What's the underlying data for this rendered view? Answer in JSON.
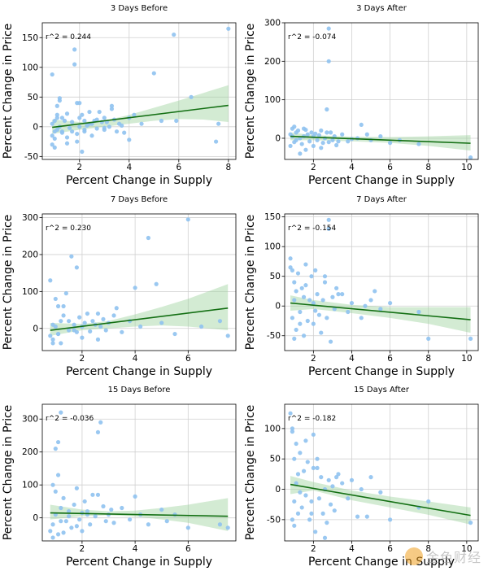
{
  "chart_data": [
    {
      "type": "scatter",
      "title": "3 Days Before",
      "xlabel": "Percent Change in Supply",
      "ylabel": "Percent Change in Price",
      "annotation": "r^2 = 0.244",
      "xlim": [
        0.5,
        8.3
      ],
      "ylim": [
        -55,
        175
      ],
      "xticks": [
        2,
        4,
        6,
        8
      ],
      "yticks": [
        -50,
        0,
        50,
        100,
        150
      ],
      "grid": true,
      "trend": {
        "x": [
          0.9,
          8.0
        ],
        "y": [
          -1,
          36
        ]
      },
      "band": {
        "x": [
          0.9,
          2.0,
          3.0,
          4.0,
          5.0,
          6.0,
          7.0,
          8.0
        ],
        "upper": [
          12,
          8,
          10,
          20,
          32,
          44,
          57,
          70
        ],
        "lower": [
          -12,
          -5,
          0,
          5,
          10,
          13,
          12,
          8
        ]
      },
      "x": [
        0.9,
        0.9,
        0.9,
        1.0,
        1.0,
        1.0,
        1.1,
        1.1,
        1.1,
        1.2,
        1.2,
        1.3,
        1.3,
        1.4,
        1.5,
        1.5,
        1.6,
        1.7,
        1.8,
        1.8,
        1.9,
        1.9,
        2.0,
        2.0,
        2.1,
        2.1,
        2.2,
        2.2,
        2.3,
        2.4,
        2.5,
        2.5,
        2.6,
        2.7,
        2.8,
        2.9,
        3.0,
        3.0,
        3.1,
        3.2,
        3.3,
        3.4,
        3.5,
        3.6,
        3.7,
        3.8,
        4.0,
        4.2,
        4.5,
        5.0,
        5.3,
        5.8,
        6.5,
        7.5,
        8.0,
        1.9,
        1.0,
        0.9,
        1.2,
        1.5,
        2.2,
        2.7,
        3.0,
        4.0,
        1.7,
        2.0,
        2.4,
        1.1,
        1.3,
        3.3,
        5.9,
        7.6
      ],
      "y": [
        -30,
        -15,
        5,
        -20,
        -8,
        10,
        35,
        20,
        -5,
        48,
        0,
        15,
        -10,
        10,
        -18,
        22,
        -2,
        8,
        130,
        105,
        40,
        -25,
        0,
        15,
        -42,
        20,
        10,
        -5,
        2,
        25,
        5,
        -15,
        10,
        -3,
        25,
        8,
        15,
        -5,
        8,
        0,
        30,
        12,
        -8,
        5,
        2,
        -10,
        15,
        20,
        5,
        90,
        10,
        155,
        50,
        -25,
        165,
        -12,
        -35,
        88,
        44,
        -28,
        -8,
        12,
        -2,
        -22,
        -8,
        40,
        5,
        15,
        -8,
        35,
        10,
        5
      ]
    },
    {
      "type": "scatter",
      "title": "3 Days After",
      "xlabel": "Percent Change in Supply",
      "ylabel": "Percent Change in Price",
      "annotation": "r^2 = -0.074",
      "xlim": [
        0.5,
        10.6
      ],
      "ylim": [
        -55,
        300
      ],
      "xticks": [
        2,
        4,
        6,
        8,
        10
      ],
      "yticks": [
        0,
        100,
        200,
        300
      ],
      "grid": true,
      "trend": {
        "x": [
          0.8,
          10.2
        ],
        "y": [
          5,
          -13
        ]
      },
      "band": {
        "x": [
          0.8,
          2.0,
          4.0,
          6.0,
          8.0,
          10.2
        ],
        "upper": [
          15,
          8,
          4,
          3,
          5,
          8
        ],
        "lower": [
          -5,
          -5,
          -8,
          -12,
          -20,
          -32
        ]
      },
      "x": [
        0.8,
        0.8,
        0.9,
        0.9,
        1.0,
        1.0,
        1.1,
        1.1,
        1.2,
        1.3,
        1.4,
        1.5,
        1.5,
        1.6,
        1.7,
        1.8,
        1.9,
        2.0,
        2.0,
        2.1,
        2.2,
        2.3,
        2.4,
        2.5,
        2.6,
        2.7,
        2.8,
        2.8,
        2.8,
        2.9,
        3.0,
        3.1,
        3.2,
        3.5,
        3.8,
        4.0,
        4.3,
        4.5,
        5.0,
        5.5,
        6.0,
        6.5,
        7.5,
        10.2,
        1.3,
        1.6,
        2.4,
        2.7,
        3.3,
        4.8
      ],
      "y": [
        -20,
        10,
        5,
        25,
        -10,
        30,
        15,
        -5,
        20,
        0,
        -15,
        5,
        25,
        -30,
        10,
        -8,
        15,
        -20,
        5,
        12,
        -5,
        8,
        20,
        -12,
        0,
        75,
        285,
        200,
        -10,
        15,
        -5,
        5,
        -18,
        10,
        -8,
        -2,
        0,
        35,
        -5,
        5,
        -12,
        -5,
        -15,
        -50,
        -40,
        22,
        -25,
        15,
        -8,
        10
      ]
    },
    {
      "type": "scatter",
      "title": "7 Days Before",
      "xlabel": "Percent Change in Supply",
      "ylabel": "Percent Change in Price",
      "annotation": "r^2 = 0.230",
      "xlim": [
        0.5,
        7.8
      ],
      "ylim": [
        -60,
        310
      ],
      "xticks": [
        2,
        4,
        6
      ],
      "yticks": [
        0,
        100,
        200,
        300
      ],
      "grid": true,
      "trend": {
        "x": [
          0.8,
          7.5
        ],
        "y": [
          -5,
          55
        ]
      },
      "band": {
        "x": [
          0.8,
          2.0,
          3.0,
          4.0,
          5.0,
          6.0,
          7.5
        ],
        "upper": [
          15,
          12,
          20,
          38,
          58,
          80,
          120
        ],
        "lower": [
          -20,
          -5,
          0,
          5,
          8,
          5,
          -5
        ]
      },
      "x": [
        0.8,
        0.8,
        0.9,
        0.9,
        1.0,
        1.0,
        1.1,
        1.1,
        1.2,
        1.2,
        1.3,
        1.4,
        1.5,
        1.5,
        1.6,
        1.7,
        1.8,
        1.8,
        1.9,
        2.0,
        2.0,
        2.1,
        2.2,
        2.3,
        2.4,
        2.5,
        2.6,
        2.7,
        2.8,
        2.9,
        3.0,
        3.2,
        3.5,
        3.8,
        4.0,
        4.2,
        4.5,
        4.8,
        5.0,
        5.5,
        6.0,
        6.5,
        7.2,
        7.5,
        1.3,
        1.7,
        2.6,
        3.3,
        0.9,
        1.1
      ],
      "y": [
        130,
        -20,
        10,
        -30,
        5,
        80,
        -15,
        60,
        20,
        -40,
        35,
        95,
        -5,
        20,
        195,
        10,
        165,
        -10,
        30,
        5,
        -25,
        15,
        40,
        -8,
        20,
        10,
        -30,
        5,
        25,
        -5,
        15,
        35,
        -10,
        20,
        110,
        5,
        245,
        120,
        15,
        -15,
        295,
        5,
        20,
        -20,
        60,
        -5,
        40,
        55,
        -40,
        -15
      ]
    },
    {
      "type": "scatter",
      "title": "7 Days After",
      "xlabel": "Percent Change in Supply",
      "ylabel": "Percent Change in Price",
      "annotation": "r^2 = -0.154",
      "xlim": [
        0.5,
        10.6
      ],
      "ylim": [
        -75,
        155
      ],
      "xticks": [
        2,
        4,
        6,
        8,
        10
      ],
      "yticks": [
        -50,
        0,
        50,
        100,
        150
      ],
      "grid": true,
      "trend": {
        "x": [
          0.8,
          10.2
        ],
        "y": [
          5,
          -23
        ]
      },
      "band": {
        "x": [
          0.8,
          2.0,
          4.0,
          6.0,
          8.0,
          10.2
        ],
        "upper": [
          18,
          10,
          2,
          -2,
          -2,
          -2
        ],
        "lower": [
          -8,
          -5,
          -12,
          -20,
          -30,
          -45
        ]
      },
      "x": [
        0.8,
        0.9,
        0.9,
        1.0,
        1.0,
        1.1,
        1.1,
        1.2,
        1.3,
        1.4,
        1.5,
        1.5,
        1.6,
        1.7,
        1.8,
        1.9,
        2.0,
        2.0,
        2.1,
        2.2,
        2.3,
        2.4,
        2.5,
        2.6,
        2.7,
        2.8,
        2.8,
        2.9,
        3.0,
        3.1,
        3.2,
        3.5,
        3.8,
        4.0,
        4.5,
        5.0,
        5.2,
        5.5,
        6.0,
        7.5,
        8.0,
        10.2,
        1.3,
        1.6,
        2.1,
        2.6,
        3.3,
        0.8,
        1.0,
        4.7
      ],
      "y": [
        80,
        60,
        -20,
        40,
        10,
        -40,
        25,
        55,
        -10,
        30,
        -50,
        15,
        35,
        -25,
        10,
        50,
        -30,
        5,
        60,
        20,
        -15,
        -45,
        10,
        40,
        -20,
        145,
        130,
        -60,
        15,
        -5,
        30,
        20,
        -10,
        5,
        -20,
        10,
        25,
        -5,
        5,
        -10,
        -55,
        -55,
        -30,
        70,
        -8,
        50,
        20,
        65,
        -55,
        0
      ]
    },
    {
      "type": "scatter",
      "title": "15 Days Before",
      "xlabel": "Percent Change in Supply",
      "ylabel": "Percent Change in Price",
      "annotation": "r^2 = -0.036",
      "xlim": [
        0.5,
        7.8
      ],
      "ylim": [
        -70,
        345
      ],
      "xticks": [
        2,
        4,
        6
      ],
      "yticks": [
        0,
        100,
        200,
        300
      ],
      "grid": true,
      "trend": {
        "x": [
          0.8,
          7.5
        ],
        "y": [
          15,
          5
        ]
      },
      "band": {
        "x": [
          0.8,
          2.0,
          3.0,
          4.0,
          5.0,
          6.0,
          7.5
        ],
        "upper": [
          40,
          25,
          20,
          22,
          30,
          40,
          60
        ],
        "lower": [
          -5,
          5,
          8,
          4,
          -5,
          -15,
          -40
        ]
      },
      "x": [
        0.8,
        0.9,
        0.9,
        1.0,
        1.0,
        1.1,
        1.1,
        1.2,
        1.2,
        1.3,
        1.4,
        1.5,
        1.6,
        1.7,
        1.8,
        1.9,
        2.0,
        2.0,
        2.1,
        2.2,
        2.3,
        2.4,
        2.5,
        2.6,
        2.7,
        2.8,
        2.9,
        3.0,
        3.2,
        3.5,
        3.8,
        4.0,
        4.2,
        4.5,
        5.0,
        5.2,
        5.5,
        6.0,
        7.2,
        7.5,
        1.0,
        1.1,
        1.3,
        1.5,
        1.8,
        2.2,
        2.6,
        3.1,
        0.9,
        1.2
      ],
      "y": [
        -40,
        100,
        -20,
        80,
        10,
        230,
        -50,
        320,
        30,
        60,
        -10,
        20,
        -30,
        40,
        90,
        -5,
        15,
        -40,
        50,
        10,
        -20,
        70,
        5,
        260,
        290,
        35,
        -10,
        10,
        -15,
        30,
        -5,
        65,
        10,
        -20,
        25,
        -10,
        10,
        -30,
        -20,
        -30,
        210,
        130,
        -45,
        5,
        -25,
        20,
        70,
        25,
        -60,
        -10
      ]
    },
    {
      "type": "scatter",
      "title": "15 Days After",
      "xlabel": "Percent Change in Supply",
      "ylabel": "Percent Change in Price",
      "annotation": "r^2 = -0.182",
      "xlim": [
        0.5,
        10.6
      ],
      "ylim": [
        -85,
        140
      ],
      "xticks": [
        2,
        4,
        6,
        8,
        10
      ],
      "yticks": [
        -50,
        0,
        50,
        100
      ],
      "grid": true,
      "trend": {
        "x": [
          0.8,
          10.2
        ],
        "y": [
          8,
          -43
        ]
      },
      "band": {
        "x": [
          0.8,
          2.0,
          4.0,
          6.0,
          8.0,
          10.2
        ],
        "upper": [
          22,
          12,
          -2,
          -12,
          -20,
          -30
        ],
        "lower": [
          -8,
          -2,
          -18,
          -30,
          -42,
          -58
        ]
      },
      "x": [
        0.8,
        0.9,
        0.9,
        1.0,
        1.0,
        1.1,
        1.1,
        1.2,
        1.3,
        1.4,
        1.5,
        1.6,
        1.7,
        1.8,
        1.9,
        2.0,
        2.0,
        2.1,
        2.2,
        2.3,
        2.4,
        2.5,
        2.6,
        2.7,
        2.8,
        2.9,
        3.0,
        3.1,
        3.2,
        3.5,
        3.8,
        4.0,
        4.3,
        4.5,
        5.0,
        5.5,
        6.0,
        7.5,
        8.0,
        10.2,
        1.0,
        1.2,
        1.6,
        1.9,
        2.2,
        2.6,
        3.3,
        0.9,
        1.3,
        4.8
      ],
      "y": [
        125,
        -50,
        95,
        50,
        -20,
        75,
        10,
        -40,
        60,
        -30,
        30,
        -10,
        45,
        -50,
        -20,
        90,
        35,
        -70,
        50,
        -15,
        20,
        -40,
        0,
        -55,
        15,
        -25,
        5,
        -35,
        20,
        10,
        -15,
        15,
        -45,
        0,
        20,
        -5,
        -50,
        -30,
        -20,
        -55,
        -60,
        25,
        80,
        -40,
        35,
        -80,
        25,
        100,
        -5,
        -45
      ]
    }
  ],
  "colors": {
    "points": "#8fc2ef",
    "trend": "#136f13",
    "band": "#9dd39d",
    "grid": "#d0d0d0",
    "axis": "#000000"
  },
  "watermark": {
    "text": "金色财经"
  }
}
